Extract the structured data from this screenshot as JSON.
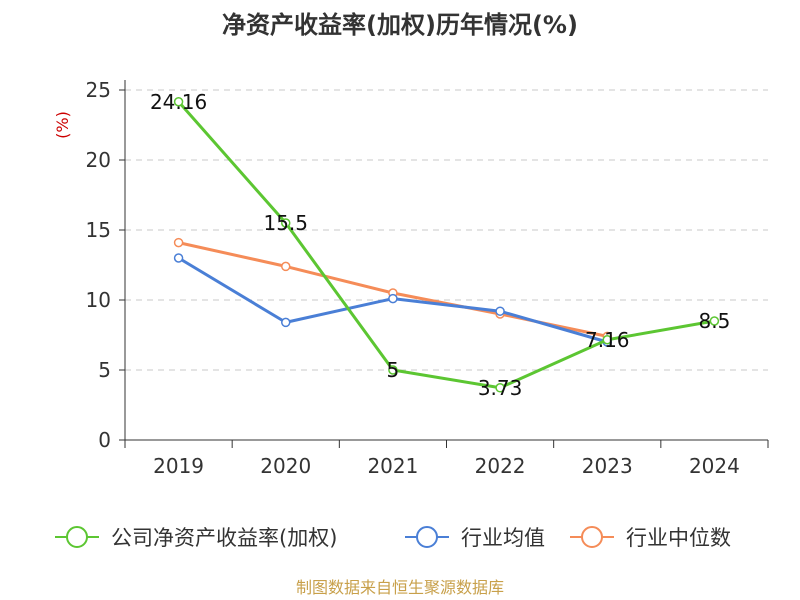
{
  "chart_data": {
    "type": "line",
    "title": "净资产收益率(加权)历年情况(%)",
    "ylabel": "(%)",
    "categories": [
      "2019",
      "2020",
      "2021",
      "2022",
      "2023",
      "2024"
    ],
    "ylim": [
      0,
      25
    ],
    "yticks": [
      0,
      5,
      10,
      15,
      20,
      25
    ],
    "grid": true,
    "legend_position": "bottom",
    "series": [
      {
        "name": "公司净资产收益率(加权)",
        "color": "#5cc632",
        "values": [
          24.16,
          15.5,
          5,
          3.73,
          7.16,
          8.5
        ],
        "data_labels": [
          "24.16",
          "15.5",
          "5",
          "3.73",
          "7.16",
          "8.5"
        ]
      },
      {
        "name": "行业均值",
        "color": "#4a7fd6",
        "values": [
          13.0,
          8.4,
          10.1,
          9.2,
          7.0,
          null
        ]
      },
      {
        "name": "行业中位数",
        "color": "#f58c58",
        "values": [
          14.1,
          12.4,
          10.5,
          9.0,
          7.4,
          null
        ]
      }
    ],
    "source": "制图数据来自恒生聚源数据库"
  }
}
